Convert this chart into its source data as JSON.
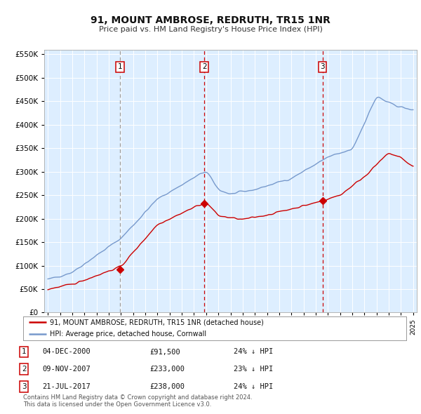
{
  "title": "91, MOUNT AMBROSE, REDRUTH, TR15 1NR",
  "subtitle": "Price paid vs. HM Land Registry's House Price Index (HPI)",
  "legend_line1": "91, MOUNT AMBROSE, REDRUTH, TR15 1NR (detached house)",
  "legend_line2": "HPI: Average price, detached house, Cornwall",
  "footer1": "Contains HM Land Registry data © Crown copyright and database right 2024.",
  "footer2": "This data is licensed under the Open Government Licence v3.0.",
  "transactions": [
    {
      "num": 1,
      "date": "04-DEC-2000",
      "price": "£91,500",
      "pct": "24% ↓ HPI",
      "year": 2000.92
    },
    {
      "num": 2,
      "date": "09-NOV-2007",
      "price": "£233,000",
      "pct": "23% ↓ HPI",
      "year": 2007.86
    },
    {
      "num": 3,
      "date": "21-JUL-2017",
      "price": "£238,000",
      "pct": "24% ↓ HPI",
      "year": 2017.55
    }
  ],
  "vline1_x": 2000.92,
  "vline2_x": 2007.86,
  "vline3_x": 2017.55,
  "vline1_color": "#999999",
  "vline2_color": "#cc0000",
  "vline3_color": "#cc0000",
  "red_color": "#cc0000",
  "blue_color": "#7799cc",
  "plot_bg": "#ddeeff",
  "grid_color": "#ffffff",
  "marker_prices": [
    91500,
    233000,
    238000
  ],
  "ylim": [
    0,
    560000
  ],
  "xlim": [
    1994.7,
    2025.3
  ]
}
